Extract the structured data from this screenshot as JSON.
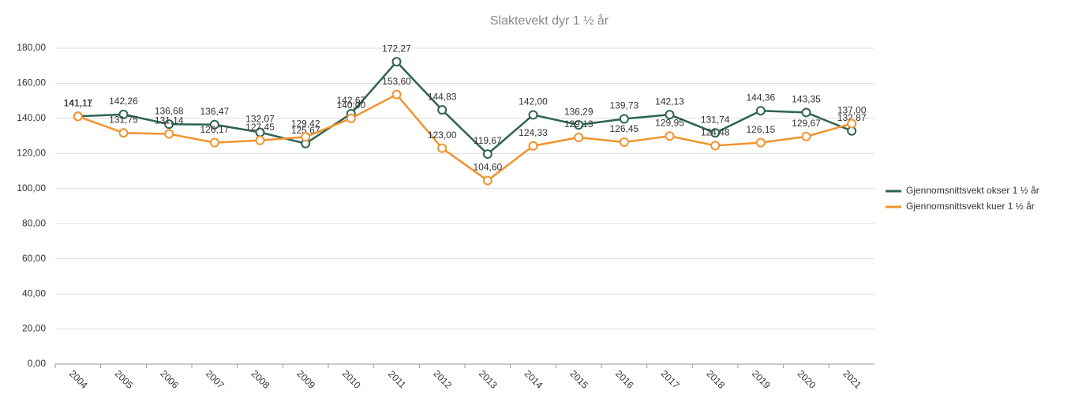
{
  "chart_data": {
    "type": "line",
    "title": "Slaktevekt dyr 1 ½ år",
    "categories": [
      "2004",
      "2005",
      "2006",
      "2007",
      "2008",
      "2009",
      "2010",
      "2011",
      "2012",
      "2013",
      "2014",
      "2015",
      "2016",
      "2017",
      "2018",
      "2019",
      "2020",
      "2021"
    ],
    "series": [
      {
        "name": "Gjennomsnittsvekt okser 1 ½ år",
        "color": "#2e6352",
        "values": [
          141.17,
          142.26,
          136.68,
          136.47,
          132.07,
          125.67,
          142.67,
          172.27,
          144.83,
          119.67,
          142.0,
          136.29,
          139.73,
          142.13,
          131.74,
          144.36,
          143.35,
          132.87
        ],
        "value_labels": [
          "141,17",
          "142,26",
          "136,68",
          "136,47",
          "132,07",
          "125,67",
          "142,67",
          "172,27",
          "144,83",
          "119,67",
          "142,00",
          "136,29",
          "139,73",
          "142,13",
          "131,74",
          "144,36",
          "143,35",
          "132,87"
        ]
      },
      {
        "name": "Gjennomsnittsvekt kuer 1 ½ år",
        "color": "#f0942f",
        "values": [
          141.11,
          131.75,
          131.14,
          126.17,
          127.45,
          129.42,
          140.0,
          153.6,
          123.0,
          104.6,
          124.33,
          129.13,
          126.45,
          129.95,
          124.48,
          126.15,
          129.67,
          137.0
        ],
        "value_labels": [
          "141,11",
          "131,75",
          "131,14",
          "126,17",
          "127,45",
          "129,42",
          "140,00",
          "153,60",
          "123,00",
          "104,60",
          "124,33",
          "129,13",
          "126,45",
          "129,95",
          "124,48",
          "126,15",
          "129,67",
          "137,00"
        ]
      }
    ],
    "ylim": [
      0,
      180
    ],
    "yticks": [
      {
        "value": 0,
        "label": "0,00"
      },
      {
        "value": 20,
        "label": "20,00"
      },
      {
        "value": 40,
        "label": "40,00"
      },
      {
        "value": 60,
        "label": "60,00"
      },
      {
        "value": 80,
        "label": "80,00"
      },
      {
        "value": 100,
        "label": "100,00"
      },
      {
        "value": 120,
        "label": "120,00"
      },
      {
        "value": 140,
        "label": "140,00"
      },
      {
        "value": 160,
        "label": "160,00"
      },
      {
        "value": 180,
        "label": "180,00"
      }
    ],
    "grid": true,
    "legend": "right"
  }
}
